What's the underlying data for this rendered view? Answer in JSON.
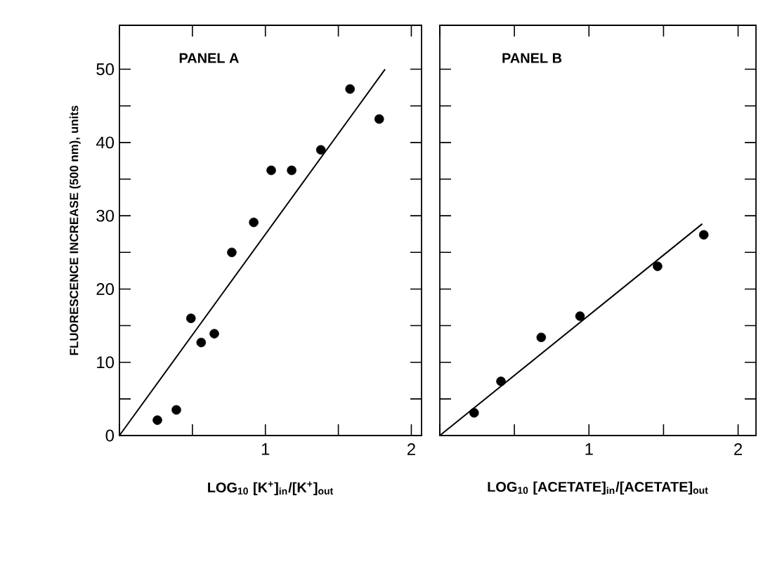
{
  "chart_data": [
    {
      "type": "scatter",
      "ylabel": "FLUORESCENCE INCREASE (500 nm), units",
      "xlabel": "LOG$_{10}$ [K$^{+}$]$_{in}$/[K$^{+}$]$_{out}$",
      "annotations": [
        "PANEL A"
      ],
      "xlim": [
        0,
        2.07
      ],
      "ylim": [
        0,
        56
      ],
      "xticks": [
        {
          "value": 0,
          "label": null
        },
        {
          "value": 0.5,
          "label": null
        },
        1,
        {
          "value": 1.5,
          "label": null
        },
        2
      ],
      "yticks": [
        0,
        {
          "value": 5,
          "label": null
        },
        10,
        {
          "value": 15,
          "label": null
        },
        20,
        {
          "value": 25,
          "label": null
        },
        30,
        {
          "value": 35,
          "label": null
        },
        40,
        {
          "value": 45,
          "label": null
        },
        50
      ],
      "series": [
        {
          "marker": "circle",
          "color": "#000000",
          "x": [
            0.26,
            0.39,
            0.49,
            0.56,
            0.65,
            0.77,
            0.92,
            1.04,
            1.18,
            1.38,
            1.58,
            1.78
          ],
          "values": [
            2.1,
            3.5,
            16.0,
            12.7,
            13.9,
            25.0,
            29.1,
            36.2,
            36.2,
            39.0,
            47.3,
            43.2
          ]
        },
        {
          "type": "line",
          "marker": "none",
          "line_style": "solid",
          "color": "#000000",
          "x": [
            0,
            1.82
          ],
          "values": [
            0,
            50
          ]
        }
      ]
    },
    {
      "type": "scatter",
      "xlabel": "LOG$_{10}$ [ACETATE]$_{in}$/[ACETATE]$_{out}$",
      "annotations": [
        "PANEL B"
      ],
      "tick_labels": "x",
      "xlim": [
        0,
        2.12
      ],
      "ylim": [
        0,
        56
      ],
      "xticks": [
        {
          "value": 0,
          "label": null
        },
        {
          "value": 0.5,
          "label": null
        },
        1,
        {
          "value": 1.5,
          "label": null
        },
        2
      ],
      "yticks": [
        {
          "value": 0,
          "label": null
        },
        {
          "value": 5,
          "label": null
        },
        {
          "value": 10,
          "label": null
        },
        {
          "value": 15,
          "label": null
        },
        {
          "value": 20,
          "label": null
        },
        {
          "value": 25,
          "label": null
        },
        {
          "value": 30,
          "label": null
        },
        {
          "value": 35,
          "label": null
        },
        {
          "value": 40,
          "label": null
        },
        {
          "value": 45,
          "label": null
        },
        {
          "value": 50,
          "label": null
        }
      ],
      "series": [
        {
          "marker": "circle",
          "color": "#000000",
          "x": [
            0.23,
            0.41,
            0.68,
            0.94,
            1.46,
            1.77
          ],
          "values": [
            3.1,
            7.4,
            13.4,
            16.3,
            23.1,
            27.4
          ]
        },
        {
          "type": "line",
          "marker": "none",
          "line_style": "solid",
          "color": "#000000",
          "x": [
            0,
            1.76
          ],
          "values": [
            0,
            28.9
          ]
        }
      ]
    }
  ]
}
